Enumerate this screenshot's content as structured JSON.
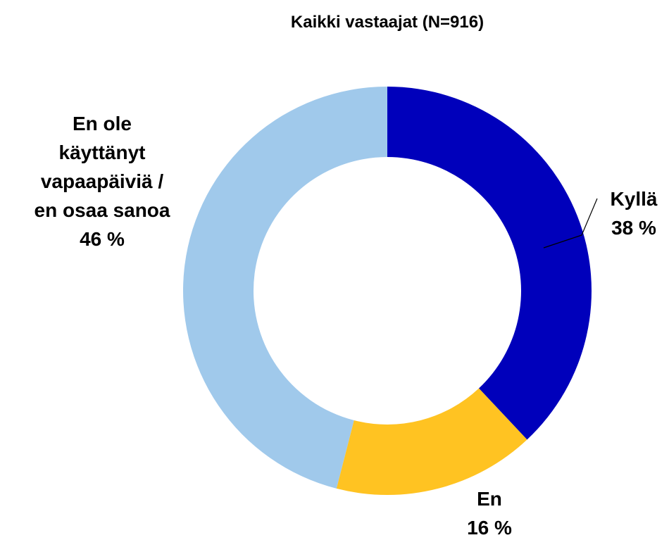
{
  "chart_data": {
    "type": "donut",
    "title": "Kaikki vastaajat (N=916)",
    "categories": [
      "Kyllä",
      "En",
      "En ole\nkäyttänyt\nvapaapäiviä /\nen osaa sanoa"
    ],
    "values": [
      38,
      16,
      46
    ],
    "value_labels": [
      "38 %",
      "16 %",
      "46 %"
    ],
    "colors": [
      "#0000bb",
      "#ffc322",
      "#a0c9eb"
    ]
  }
}
